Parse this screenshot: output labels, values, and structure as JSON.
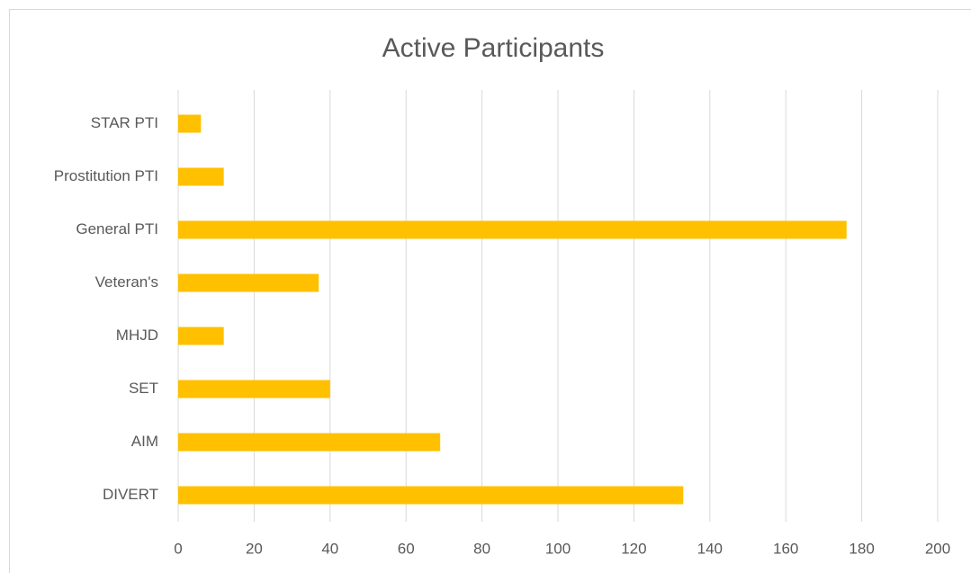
{
  "chart_data": {
    "type": "bar",
    "orientation": "horizontal",
    "title": "Active Participants",
    "categories": [
      "STAR PTI",
      "Prostitution PTI",
      "General PTI",
      "Veteran's",
      "MHJD",
      "SET",
      "AIM",
      "DIVERT"
    ],
    "values": [
      6,
      12,
      176,
      37,
      12,
      40,
      69,
      133
    ],
    "color": "#ffc000",
    "xlim": [
      0,
      200
    ],
    "xticks": [
      0,
      20,
      40,
      60,
      80,
      100,
      120,
      140,
      160,
      180,
      200
    ],
    "grid": true
  }
}
